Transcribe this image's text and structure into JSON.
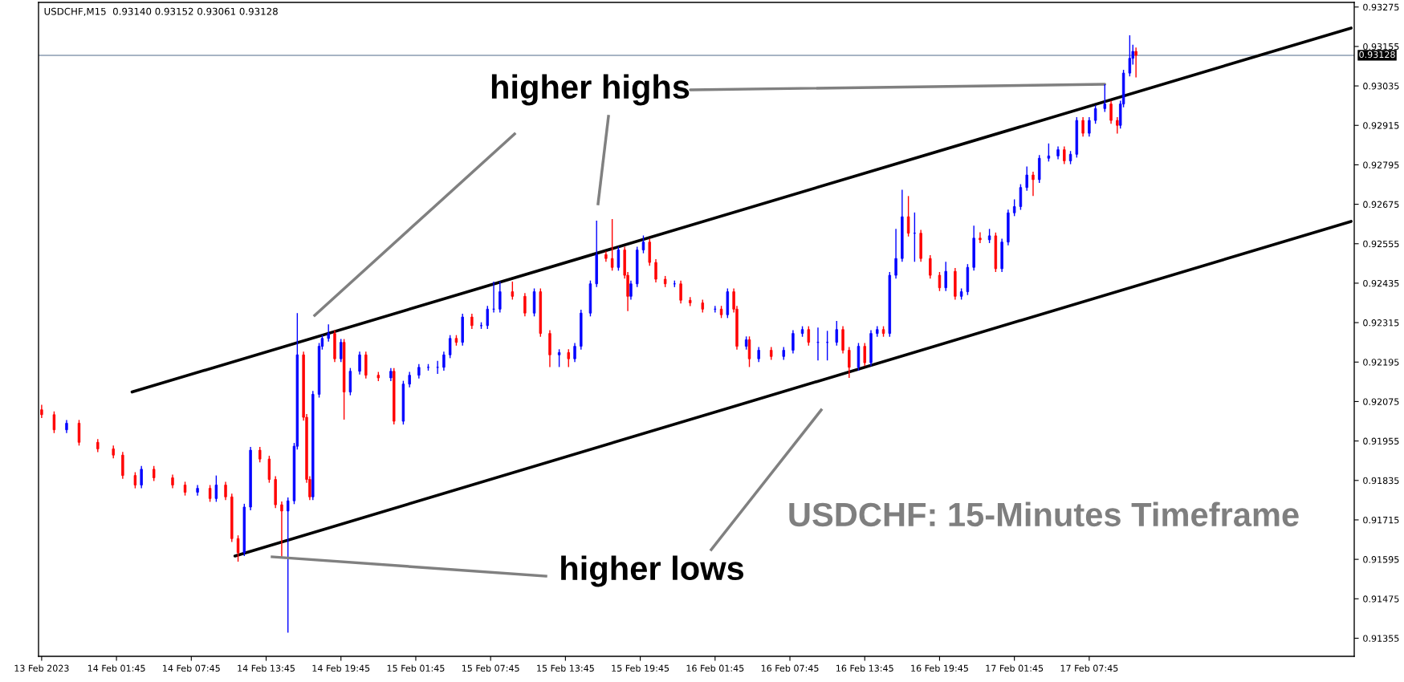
{
  "chart_data": {
    "type": "candlestick",
    "title": "USDCHF,M15  0.93140 0.93152 0.93061 0.93128",
    "annotations": [
      {
        "text": "higher highs",
        "x": "2023-02-17T09:00",
        "y": 0.9304
      },
      "higher lows",
      "USDCHF: 15-Minutes Timeframe"
    ],
    "colors": [
      "#ff0000",
      "#ff0000",
      "#0000ff",
      "#ff0000",
      "#ff0000",
      "#ff0000",
      "#ff0000",
      "#ff0000",
      "#0000ff",
      "#ff0000",
      "#ff0000",
      "#ff0000",
      "#0000ff",
      "#ff0000",
      "#0000ff",
      "#ff0000",
      "#ff0000",
      "#ff0000",
      "#0000ff",
      "#0000ff",
      "#ff0000",
      "#ff0000",
      "#ff0000",
      "#ff0000",
      "#0000ff",
      "#0000ff",
      "#0000ff",
      "#ff0000",
      "#ff0000",
      "#ff0000",
      "#0000ff",
      "#0000ff",
      "#0000ff",
      "#0000ff",
      "#ff0000",
      "#0000ff",
      "#ff0000",
      "#0000ff",
      "#0000ff",
      "#ff0000",
      "#ff0000",
      "#0000ff",
      "#ff0000",
      "#0000ff",
      "#0000ff",
      "#0000ff",
      "#0000ff",
      "#0000ff",
      "#0000ff",
      "#0000ff",
      "#ff0000",
      "#0000ff",
      "#ff0000",
      "#0000ff",
      "#0000ff",
      "#0000ff",
      "#0000ff",
      "#ff0000",
      "#ff0000",
      "#0000ff",
      "#ff0000",
      "#ff0000",
      "#0000ff",
      "#ff0000",
      "#0000ff",
      "#0000ff",
      "#0000ff",
      "#0000ff",
      "#ff0000",
      "#ff0000",
      "#0000ff",
      "#ff0000",
      "#ff0000",
      "#0000ff",
      "#0000ff",
      "#0000ff",
      "#ff0000",
      "#ff0000",
      "#ff0000",
      "#0000ff",
      "#ff0000",
      "#ff0000",
      "#ff0000",
      "#0000ff",
      "#ff0000",
      "#0000ff",
      "#ff0000",
      "#ff0000",
      "#0000ff",
      "#ff0000",
      "#0000ff",
      "#ff0000",
      "#0000ff",
      "#0000ff",
      "#0000ff",
      "#ff0000",
      "#0000ff",
      "#0000ff",
      "#0000ff",
      "#ff0000",
      "#ff0000",
      "#0000ff",
      "#ff0000",
      "#0000ff",
      "#0000ff",
      "#ff0000",
      "#0000ff",
      "#0000ff",
      "#0000ff",
      "#ff0000",
      "#0000ff",
      "#ff0000",
      "#ff0000",
      "#ff0000",
      "#0000ff",
      "#ff0000",
      "#0000ff",
      "#0000ff",
      "#0000ff",
      "#ff0000",
      "#0000ff",
      "#ff0000",
      "#0000ff",
      "#0000ff",
      "#0000ff",
      "#0000ff",
      "#0000ff",
      "#ff0000",
      "#0000ff",
      "#0000ff",
      "#0000ff",
      "#ff0000",
      "#0000ff",
      "#0000ff",
      "#ff0000",
      "#0000ff",
      "#0000ff",
      "#0000ff",
      "#ff0000",
      "#ff0000",
      "#0000ff",
      "#0000ff",
      "#0000ff",
      "#0000ff",
      "#ff0000"
    ],
    "xlim": [
      "2023-02-13T19:30",
      "2023-02-18T05:00"
    ],
    "xticks": [
      {
        "value": "2023-02-13T19:45",
        "label": "13 Feb 2023"
      },
      {
        "value": "2023-02-14T01:45",
        "label": "14 Feb 01:45"
      },
      {
        "value": "2023-02-14T07:45",
        "label": "14 Feb 07:45"
      },
      {
        "value": "2023-02-14T13:45",
        "label": "14 Feb 13:45"
      },
      {
        "value": "2023-02-14T19:45",
        "label": "14 Feb 19:45"
      },
      {
        "value": "2023-02-15T01:45",
        "label": "15 Feb 01:45"
      },
      {
        "value": "2023-02-15T07:45",
        "label": "15 Feb 07:45"
      },
      {
        "value": "2023-02-15T13:45",
        "label": "15 Feb 13:45"
      },
      {
        "value": "2023-02-15T19:45",
        "label": "15 Feb 19:45"
      },
      {
        "value": "2023-02-16T01:45",
        "label": "16 Feb 01:45"
      },
      {
        "value": "2023-02-16T07:45",
        "label": "16 Feb 07:45"
      },
      {
        "value": "2023-02-16T13:45",
        "label": "16 Feb 13:45"
      },
      {
        "value": "2023-02-16T19:45",
        "label": "16 Feb 19:45"
      },
      {
        "value": "2023-02-17T01:45",
        "label": "17 Feb 01:45"
      },
      {
        "value": "2023-02-17T07:45",
        "label": "17 Feb 07:45"
      }
    ],
    "ylim": [
      0.913,
      0.93289
    ],
    "yticks": [
      0.91355,
      0.91475,
      0.91595,
      0.91715,
      0.91835,
      0.91955,
      0.92075,
      0.92195,
      0.92315,
      0.92435,
      0.92555,
      0.92675,
      0.92795,
      0.92915,
      0.93035,
      0.93155,
      0.93275
    ],
    "ref_lines": [
      {
        "axis": "y",
        "value": 0.93128,
        "label": "0.93128",
        "color": "#8a9bb0"
      }
    ],
    "series": [
      {
        "type": "line",
        "color": "#000000",
        "x": [
          "2023-02-14T03:00",
          "2023-02-18T04:45"
        ],
        "values": [
          0.92104,
          0.93211
        ]
      },
      {
        "type": "line",
        "color": "#000000",
        "x": [
          "2023-02-14T11:15",
          "2023-02-18T04:45"
        ],
        "values": [
          0.91605,
          0.92623
        ]
      }
    ],
    "x": [
      "2023-02-13T19:45",
      "2023-02-13T20:45",
      "2023-02-13T21:45",
      "2023-02-13T22:45",
      "2023-02-14T00:15",
      "2023-02-14T01:30",
      "2023-02-14T02:15",
      "2023-02-14T03:15",
      "2023-02-14T03:45",
      "2023-02-14T04:45",
      "2023-02-14T06:15",
      "2023-02-14T07:15",
      "2023-02-14T08:15",
      "2023-02-14T09:15",
      "2023-02-14T09:45",
      "2023-02-14T10:30",
      "2023-02-14T11:00",
      "2023-02-14T11:30",
      "2023-02-14T12:00",
      "2023-02-14T12:30",
      "2023-02-14T13:15",
      "2023-02-14T14:00",
      "2023-02-14T14:30",
      "2023-02-14T15:00",
      "2023-02-14T15:30",
      "2023-02-14T16:00",
      "2023-02-14T16:15",
      "2023-02-14T16:45",
      "2023-02-14T17:00",
      "2023-02-14T17:15",
      "2023-02-14T17:30",
      "2023-02-14T18:00",
      "2023-02-14T18:15",
      "2023-02-14T18:45",
      "2023-02-14T19:15",
      "2023-02-14T19:45",
      "2023-02-14T20:00",
      "2023-02-14T20:30",
      "2023-02-14T21:15",
      "2023-02-14T21:45",
      "2023-02-14T22:45",
      "2023-02-14T23:45",
      "2023-02-15T00:00",
      "2023-02-15T00:45",
      "2023-02-15T01:15",
      "2023-02-15T02:00",
      "2023-02-15T02:45",
      "2023-02-15T03:30",
      "2023-02-15T04:00",
      "2023-02-15T04:30",
      "2023-02-15T05:00",
      "2023-02-15T05:30",
      "2023-02-15T06:15",
      "2023-02-15T07:00",
      "2023-02-15T07:30",
      "2023-02-15T08:00",
      "2023-02-15T08:30",
      "2023-02-15T09:30",
      "2023-02-15T10:30",
      "2023-02-15T11:15",
      "2023-02-15T11:45",
      "2023-02-15T12:30",
      "2023-02-15T13:15",
      "2023-02-15T14:00",
      "2023-02-15T14:30",
      "2023-02-15T15:00",
      "2023-02-15T15:45",
      "2023-02-15T16:15",
      "2023-02-15T17:00",
      "2023-02-15T17:30",
      "2023-02-15T18:00",
      "2023-02-15T18:30",
      "2023-02-15T18:45",
      "2023-02-15T19:00",
      "2023-02-15T19:30",
      "2023-02-15T20:00",
      "2023-02-15T20:30",
      "2023-02-15T21:00",
      "2023-02-15T21:45",
      "2023-02-15T22:30",
      "2023-02-15T23:00",
      "2023-02-15T23:45",
      "2023-02-16T00:45",
      "2023-02-16T01:45",
      "2023-02-16T02:15",
      "2023-02-16T02:45",
      "2023-02-16T03:15",
      "2023-02-16T03:30",
      "2023-02-16T04:15",
      "2023-02-16T04:30",
      "2023-02-16T05:15",
      "2023-02-16T06:15",
      "2023-02-16T07:15",
      "2023-02-16T08:00",
      "2023-02-16T08:45",
      "2023-02-16T09:15",
      "2023-02-16T10:00",
      "2023-02-16T10:45",
      "2023-02-16T11:30",
      "2023-02-16T12:00",
      "2023-02-16T12:30",
      "2023-02-16T13:15",
      "2023-02-16T13:45",
      "2023-02-16T14:15",
      "2023-02-16T14:45",
      "2023-02-16T15:15",
      "2023-02-16T15:45",
      "2023-02-16T16:15",
      "2023-02-16T16:45",
      "2023-02-16T17:15",
      "2023-02-16T17:45",
      "2023-02-16T18:15",
      "2023-02-16T19:00",
      "2023-02-16T19:45",
      "2023-02-16T20:15",
      "2023-02-16T21:00",
      "2023-02-16T21:30",
      "2023-02-16T22:00",
      "2023-02-16T22:30",
      "2023-02-16T23:00",
      "2023-02-16T23:45",
      "2023-02-17T00:15",
      "2023-02-17T00:45",
      "2023-02-17T01:15",
      "2023-02-17T01:45",
      "2023-02-17T02:15",
      "2023-02-17T02:45",
      "2023-02-17T03:15",
      "2023-02-17T03:45",
      "2023-02-17T04:30",
      "2023-02-17T05:15",
      "2023-02-17T05:45",
      "2023-02-17T06:15",
      "2023-02-17T06:45",
      "2023-02-17T07:15",
      "2023-02-17T07:45",
      "2023-02-17T08:15",
      "2023-02-17T09:00",
      "2023-02-17T09:30",
      "2023-02-17T10:00",
      "2023-02-17T10:15",
      "2023-02-17T10:30",
      "2023-02-17T11:00",
      "2023-02-17T11:15",
      "2023-02-17T11:30"
    ],
    "ohlc": [
      [
        0.9205,
        0.92065,
        0.92025,
        0.92035
      ],
      [
        0.92035,
        0.92045,
        0.91979,
        0.91989
      ],
      [
        0.91989,
        0.92019,
        0.91979,
        0.92009
      ],
      [
        0.92009,
        0.92019,
        0.91941,
        0.91951
      ],
      [
        0.91951,
        0.91961,
        0.91921,
        0.91931
      ],
      [
        0.91931,
        0.91941,
        0.91902,
        0.91912
      ],
      [
        0.91912,
        0.91922,
        0.9184,
        0.9185
      ],
      [
        0.9185,
        0.9186,
        0.91811,
        0.91821
      ],
      [
        0.91821,
        0.91879,
        0.91811,
        0.91869
      ],
      [
        0.91869,
        0.91879,
        0.91833,
        0.91843
      ],
      [
        0.91843,
        0.91853,
        0.91811,
        0.91821
      ],
      [
        0.91821,
        0.91831,
        0.91789,
        0.91799
      ],
      [
        0.91799,
        0.91821,
        0.91789,
        0.91811
      ],
      [
        0.91811,
        0.91821,
        0.9177,
        0.9178
      ],
      [
        0.9178,
        0.9185,
        0.9177,
        0.91821
      ],
      [
        0.91821,
        0.91831,
        0.91775,
        0.91785
      ],
      [
        0.91785,
        0.91795,
        0.91648,
        0.91658
      ],
      [
        0.91658,
        0.91668,
        0.91588,
        0.91615
      ],
      [
        0.91615,
        0.91764,
        0.91605,
        0.91754
      ],
      [
        0.91754,
        0.91937,
        0.91744,
        0.91927
      ],
      [
        0.91927,
        0.91937,
        0.9189,
        0.919
      ],
      [
        0.919,
        0.9191,
        0.91828,
        0.91838
      ],
      [
        0.91838,
        0.91848,
        0.91751,
        0.91761
      ],
      [
        0.91761,
        0.91771,
        0.91603,
        0.91742
      ],
      [
        0.91742,
        0.91783,
        0.91372,
        0.91773
      ],
      [
        0.91773,
        0.91949,
        0.91763,
        0.91939
      ],
      [
        0.91939,
        0.92344,
        0.91929,
        0.92217
      ],
      [
        0.92217,
        0.92227,
        0.92017,
        0.92027
      ],
      [
        0.92027,
        0.92037,
        0.91828,
        0.91838
      ],
      [
        0.91838,
        0.91848,
        0.91775,
        0.91785
      ],
      [
        0.91785,
        0.92107,
        0.91775,
        0.92097
      ],
      [
        0.92097,
        0.92253,
        0.92087,
        0.92243
      ],
      [
        0.92243,
        0.92277,
        0.92233,
        0.92267
      ],
      [
        0.92267,
        0.9231,
        0.92257,
        0.92282
      ],
      [
        0.92282,
        0.92292,
        0.92195,
        0.92205
      ],
      [
        0.92205,
        0.92265,
        0.92195,
        0.92255
      ],
      [
        0.92255,
        0.92265,
        0.9202,
        0.92104
      ],
      [
        0.92104,
        0.92177,
        0.92094,
        0.92167
      ],
      [
        0.92167,
        0.92227,
        0.92157,
        0.92217
      ],
      [
        0.92217,
        0.92227,
        0.92145,
        0.92155
      ],
      [
        0.92155,
        0.92165,
        0.92137,
        0.92147
      ],
      [
        0.92147,
        0.92177,
        0.92137,
        0.92167
      ],
      [
        0.92167,
        0.92177,
        0.92005,
        0.92015
      ],
      [
        0.92015,
        0.92138,
        0.92005,
        0.92128
      ],
      [
        0.92128,
        0.92165,
        0.92118,
        0.92155
      ],
      [
        0.92155,
        0.92189,
        0.92145,
        0.92179
      ],
      [
        0.92179,
        0.92189,
        0.92169,
        0.92179
      ],
      [
        0.92179,
        0.92199,
        0.92159,
        0.92179
      ],
      [
        0.92179,
        0.92227,
        0.92169,
        0.92217
      ],
      [
        0.92217,
        0.92277,
        0.92207,
        0.92267
      ],
      [
        0.92267,
        0.92277,
        0.92245,
        0.92255
      ],
      [
        0.92255,
        0.92342,
        0.92245,
        0.92332
      ],
      [
        0.92332,
        0.92342,
        0.92296,
        0.92306
      ],
      [
        0.92306,
        0.92316,
        0.92296,
        0.92306
      ],
      [
        0.92306,
        0.92366,
        0.92296,
        0.92356
      ],
      [
        0.92356,
        0.9244,
        0.92346,
        0.92356
      ],
      [
        0.92356,
        0.9244,
        0.92346,
        0.92409
      ],
      [
        0.92409,
        0.9244,
        0.92385,
        0.92395
      ],
      [
        0.92395,
        0.92405,
        0.92334,
        0.92344
      ],
      [
        0.92344,
        0.92419,
        0.92334,
        0.92409
      ],
      [
        0.92409,
        0.92419,
        0.92272,
        0.92282
      ],
      [
        0.92282,
        0.92292,
        0.9218,
        0.92217
      ],
      [
        0.92217,
        0.92234,
        0.9218,
        0.92224
      ],
      [
        0.92224,
        0.92234,
        0.9218,
        0.92205
      ],
      [
        0.92205,
        0.92253,
        0.92195,
        0.92243
      ],
      [
        0.92243,
        0.92354,
        0.92233,
        0.92344
      ],
      [
        0.92344,
        0.92443,
        0.92334,
        0.92433
      ],
      [
        0.92433,
        0.92625,
        0.92423,
        0.92522
      ],
      [
        0.92522,
        0.92532,
        0.925,
        0.9251
      ],
      [
        0.9251,
        0.9263,
        0.92473,
        0.92483
      ],
      [
        0.92483,
        0.92546,
        0.92473,
        0.92536
      ],
      [
        0.92536,
        0.92546,
        0.92449,
        0.92459
      ],
      [
        0.92459,
        0.92469,
        0.9235,
        0.92395
      ],
      [
        0.92395,
        0.92443,
        0.92385,
        0.92433
      ],
      [
        0.92433,
        0.92546,
        0.92423,
        0.92536
      ],
      [
        0.92536,
        0.9258,
        0.92526,
        0.9256
      ],
      [
        0.9256,
        0.9257,
        0.92488,
        0.92498
      ],
      [
        0.92498,
        0.92508,
        0.92437,
        0.92447
      ],
      [
        0.92447,
        0.92457,
        0.92423,
        0.92433
      ],
      [
        0.92433,
        0.92443,
        0.92423,
        0.92433
      ],
      [
        0.92433,
        0.92443,
        0.92373,
        0.92383
      ],
      [
        0.92383,
        0.92393,
        0.92365,
        0.92375
      ],
      [
        0.92375,
        0.92385,
        0.92346,
        0.92356
      ],
      [
        0.92356,
        0.92366,
        0.92346,
        0.92356
      ],
      [
        0.92356,
        0.92366,
        0.92329,
        0.92339
      ],
      [
        0.92339,
        0.92419,
        0.92329,
        0.92409
      ],
      [
        0.92409,
        0.92419,
        0.92346,
        0.92356
      ],
      [
        0.92356,
        0.92366,
        0.92233,
        0.92243
      ],
      [
        0.92243,
        0.92273,
        0.92233,
        0.92263
      ],
      [
        0.92263,
        0.92273,
        0.9218,
        0.92205
      ],
      [
        0.92205,
        0.92241,
        0.92195,
        0.92231
      ],
      [
        0.92231,
        0.92241,
        0.92202,
        0.92212
      ],
      [
        0.92212,
        0.92241,
        0.92202,
        0.92231
      ],
      [
        0.92231,
        0.92292,
        0.92221,
        0.92282
      ],
      [
        0.92282,
        0.92304,
        0.92272,
        0.92294
      ],
      [
        0.92294,
        0.92304,
        0.92245,
        0.92255
      ],
      [
        0.92255,
        0.923,
        0.922,
        0.92255
      ],
      [
        0.92255,
        0.9229,
        0.922,
        0.92255
      ],
      [
        0.92255,
        0.9232,
        0.92245,
        0.92294
      ],
      [
        0.92294,
        0.92304,
        0.92221,
        0.92231
      ],
      [
        0.92231,
        0.92241,
        0.92147,
        0.92179
      ],
      [
        0.92179,
        0.92253,
        0.92169,
        0.92243
      ],
      [
        0.92243,
        0.92253,
        0.92183,
        0.92193
      ],
      [
        0.92193,
        0.92292,
        0.92183,
        0.92282
      ],
      [
        0.92282,
        0.92304,
        0.92272,
        0.92294
      ],
      [
        0.92294,
        0.92304,
        0.92272,
        0.92282
      ],
      [
        0.92282,
        0.92469,
        0.92272,
        0.92459
      ],
      [
        0.92459,
        0.926,
        0.92449,
        0.9251
      ],
      [
        0.9251,
        0.92719,
        0.925,
        0.92637
      ],
      [
        0.92637,
        0.927,
        0.92577,
        0.92587
      ],
      [
        0.92587,
        0.9265,
        0.925,
        0.92587
      ],
      [
        0.92587,
        0.92597,
        0.925,
        0.9251
      ],
      [
        0.9251,
        0.9252,
        0.92449,
        0.92459
      ],
      [
        0.92459,
        0.92469,
        0.92411,
        0.92421
      ],
      [
        0.92421,
        0.925,
        0.92411,
        0.92471
      ],
      [
        0.92471,
        0.92481,
        0.92385,
        0.92395
      ],
      [
        0.92395,
        0.92419,
        0.92385,
        0.92409
      ],
      [
        0.92409,
        0.92493,
        0.92399,
        0.92483
      ],
      [
        0.92483,
        0.9261,
        0.92473,
        0.92572
      ],
      [
        0.92572,
        0.9259,
        0.92557,
        0.92567
      ],
      [
        0.92567,
        0.926,
        0.92557,
        0.92579
      ],
      [
        0.92579,
        0.92589,
        0.92469,
        0.92479
      ],
      [
        0.92479,
        0.9257,
        0.92469,
        0.9256
      ],
      [
        0.9256,
        0.92659,
        0.9255,
        0.92649
      ],
      [
        0.92649,
        0.9269,
        0.92639,
        0.92668
      ],
      [
        0.92668,
        0.92736,
        0.92658,
        0.92726
      ],
      [
        0.92726,
        0.9279,
        0.92716,
        0.92764
      ],
      [
        0.92764,
        0.92774,
        0.927,
        0.9275
      ],
      [
        0.9275,
        0.92825,
        0.9274,
        0.92815
      ],
      [
        0.92815,
        0.9286,
        0.92805,
        0.92822
      ],
      [
        0.92822,
        0.92851,
        0.92812,
        0.92841
      ],
      [
        0.92841,
        0.92851,
        0.92797,
        0.92807
      ],
      [
        0.92807,
        0.92837,
        0.92797,
        0.92827
      ],
      [
        0.92827,
        0.9294,
        0.92817,
        0.9293
      ],
      [
        0.9293,
        0.9294,
        0.92881,
        0.92891
      ],
      [
        0.92891,
        0.9294,
        0.92881,
        0.9293
      ],
      [
        0.9293,
        0.92976,
        0.9292,
        0.92966
      ],
      [
        0.92966,
        0.9304,
        0.92956,
        0.9298
      ],
      [
        0.9298,
        0.9299,
        0.9292,
        0.9293
      ],
      [
        0.9293,
        0.9294,
        0.9289,
        0.92915
      ],
      [
        0.92915,
        0.9299,
        0.92905,
        0.9298
      ],
      [
        0.9298,
        0.93084,
        0.9297,
        0.93074
      ],
      [
        0.93074,
        0.93189,
        0.93064,
        0.93119
      ],
      [
        0.93119,
        0.9316,
        0.931,
        0.9314
      ],
      [
        0.9314,
        0.93152,
        0.93061,
        0.93128
      ]
    ]
  }
}
